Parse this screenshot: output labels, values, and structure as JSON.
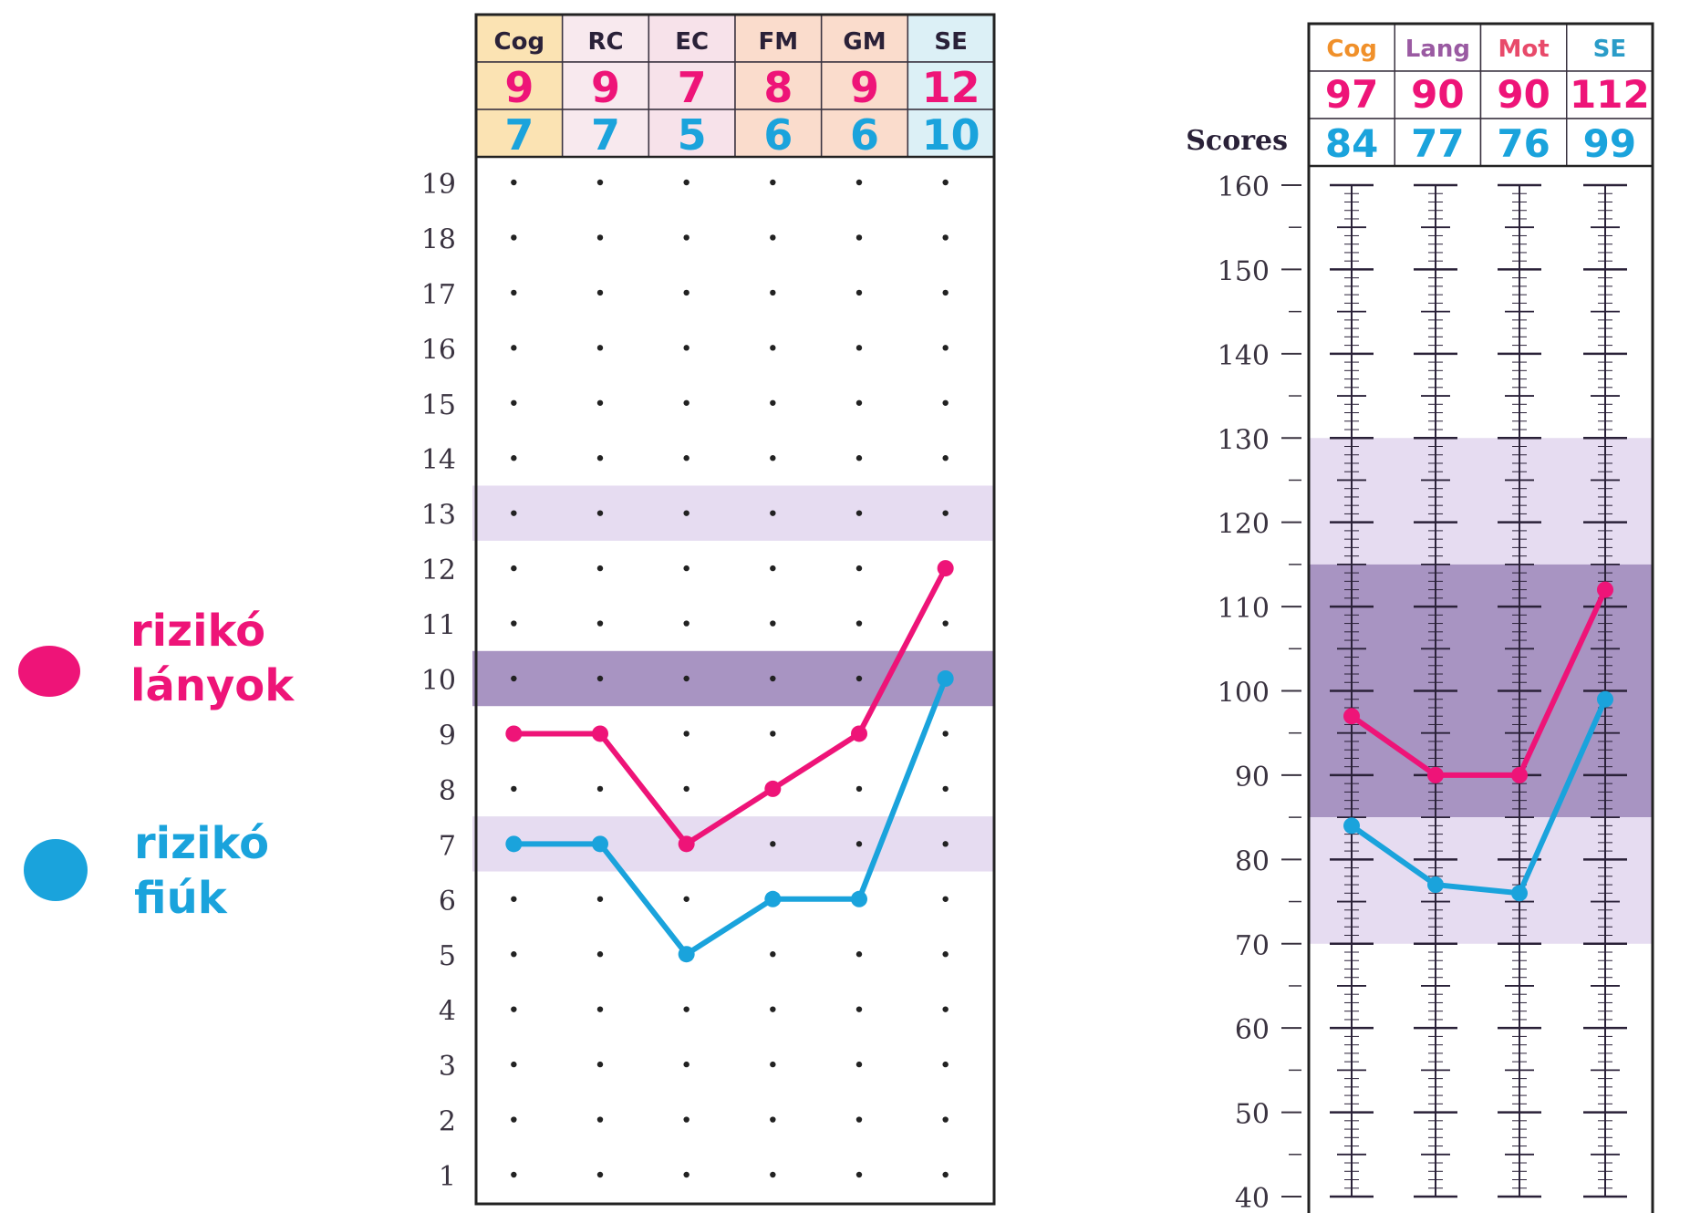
{
  "colors": {
    "girls": "#ee1478",
    "boys": "#1aa3dc",
    "band_light": "#e6dcf1",
    "band_dark": "#a894c2",
    "ink": "#2a2138",
    "header_cog": "#fbe3b3",
    "header_rc": "#f8e9ee",
    "header_ec": "#f7e2ea",
    "header_fm": "#fadccc",
    "header_gm": "#fadccc",
    "header_se": "#dcf0f6",
    "label_cog": "#f0902a",
    "label_lang": "#9a5aa2",
    "label_mot": "#e84a6a",
    "label_se": "#2a9cc8"
  },
  "legend": [
    {
      "lines": [
        "rizikó",
        "lányok"
      ],
      "color": "#ee1478"
    },
    {
      "lines": [
        "rizikó",
        "fiúk"
      ],
      "color": "#1aa3dc"
    }
  ],
  "chart_data": [
    {
      "type": "line",
      "title": "",
      "categories": [
        "Cog",
        "RC",
        "EC",
        "FM",
        "GM",
        "SE"
      ],
      "series": [
        {
          "name": "rizikó lányok",
          "values": [
            9,
            9,
            7,
            8,
            9,
            12
          ]
        },
        {
          "name": "rizikó fiúk",
          "values": [
            7,
            7,
            5,
            6,
            6,
            10
          ]
        }
      ],
      "ylim": [
        1,
        19
      ],
      "yticks": [
        1,
        2,
        3,
        4,
        5,
        6,
        7,
        8,
        9,
        10,
        11,
        12,
        13,
        14,
        15,
        16,
        17,
        18,
        19
      ],
      "bands": [
        {
          "from": 12.5,
          "to": 13.5,
          "shade": "light"
        },
        {
          "from": 9.5,
          "to": 10.5,
          "shade": "dark"
        },
        {
          "from": 6.5,
          "to": 7.5,
          "shade": "light"
        }
      ],
      "grid": "dots"
    },
    {
      "type": "line",
      "title": "",
      "ylabel": "Scores",
      "categories": [
        "Cog",
        "Lang",
        "Mot",
        "SE"
      ],
      "series": [
        {
          "name": "rizikó lányok",
          "values": [
            97,
            90,
            90,
            112
          ]
        },
        {
          "name": "rizikó fiúk",
          "values": [
            84,
            77,
            76,
            99
          ]
        }
      ],
      "ylim": [
        40,
        160
      ],
      "yticks": [
        40,
        50,
        60,
        70,
        80,
        90,
        100,
        110,
        120,
        130,
        140,
        150,
        160
      ],
      "bands": [
        {
          "from": 115,
          "to": 130,
          "shade": "light"
        },
        {
          "from": 85,
          "to": 115,
          "shade": "dark"
        },
        {
          "from": 70,
          "to": 85,
          "shade": "light"
        }
      ],
      "grid": "ticks"
    }
  ]
}
